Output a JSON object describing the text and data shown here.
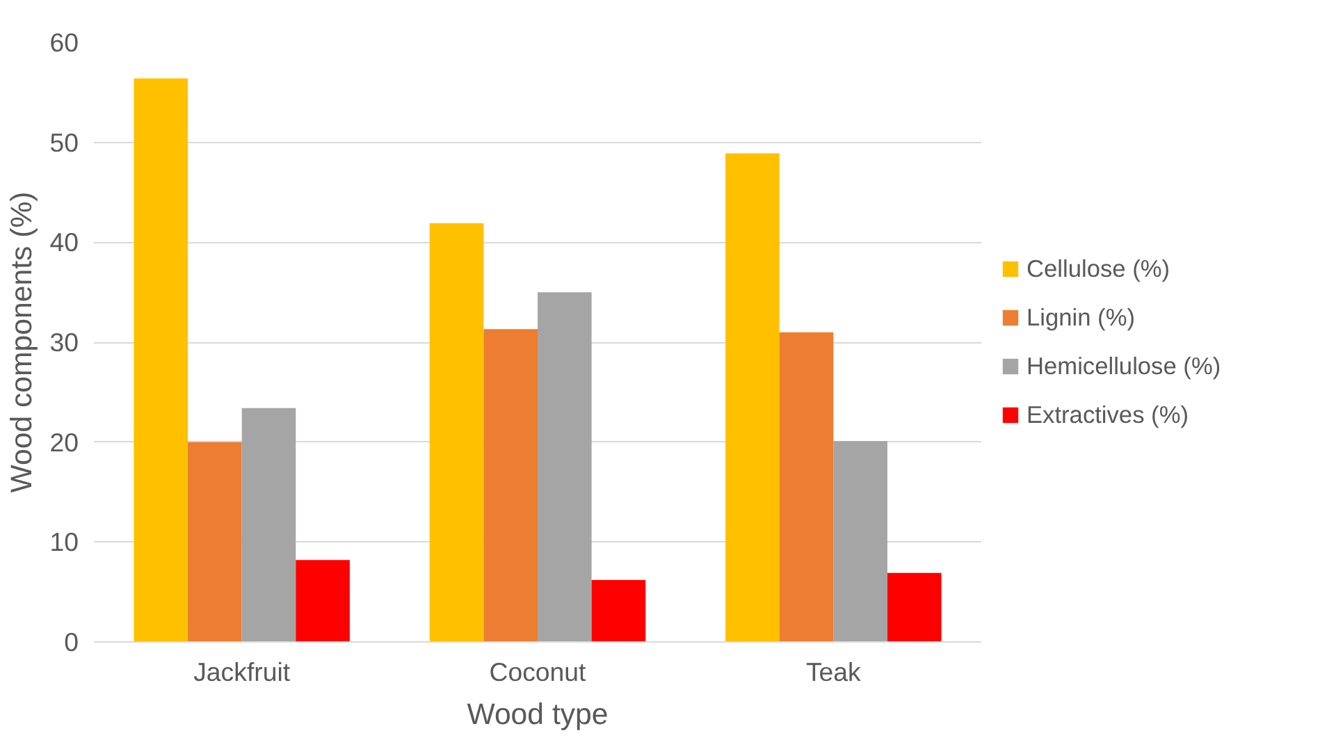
{
  "chart_data": {
    "type": "bar",
    "xlabel": "Wood type",
    "ylabel": "Wood components (%)",
    "categories": [
      "Jackfruit",
      "Coconut",
      "Teak"
    ],
    "series": [
      {
        "name": "Cellulose (%)",
        "color": "#ffc000",
        "values": [
          56.4,
          41.9,
          48.9
        ]
      },
      {
        "name": "Lignin (%)",
        "color": "#ed7d31",
        "values": [
          20.0,
          31.3,
          31.0
        ]
      },
      {
        "name": "Hemicellulose (%)",
        "color": "#a5a5a5",
        "values": [
          23.4,
          35.0,
          20.1
        ]
      },
      {
        "name": "Extractives (%)",
        "color": "#ff0000",
        "values": [
          8.2,
          6.2,
          6.9
        ]
      }
    ],
    "ylim": [
      0,
      60
    ],
    "yticks": [
      0,
      10,
      20,
      30,
      40,
      50,
      60
    ],
    "grid": "y",
    "legend": "right"
  }
}
